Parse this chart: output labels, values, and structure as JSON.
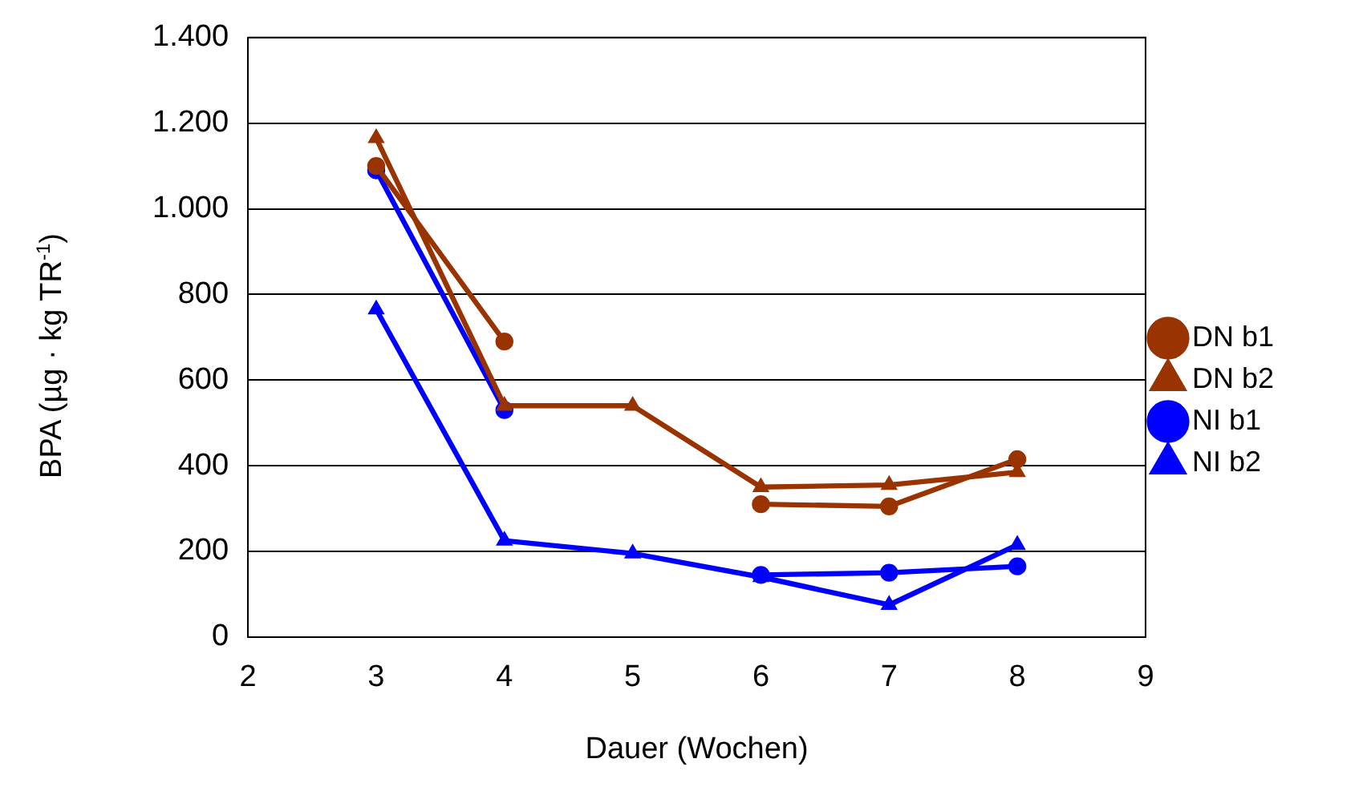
{
  "chart_data": {
    "type": "line",
    "xlabel": "Dauer (Wochen)",
    "ylabel": "BPA (µg · kg TR$^{-1}$)",
    "x": [
      3,
      4,
      5,
      6,
      7,
      8
    ],
    "series": [
      {
        "name": "DN b1",
        "color": "#993300",
        "marker": "circle",
        "values": [
          1100,
          690,
          null,
          310,
          305,
          415
        ]
      },
      {
        "name": "DN b2",
        "color": "#993300",
        "marker": "triangle",
        "values": [
          1165,
          540,
          540,
          350,
          355,
          385
        ]
      },
      {
        "name": "NI b1",
        "color": "#0000ff",
        "marker": "circle",
        "values": [
          1090,
          530,
          null,
          145,
          150,
          165
        ]
      },
      {
        "name": "NI b2",
        "color": "#0000ff",
        "marker": "triangle",
        "values": [
          765,
          225,
          195,
          140,
          75,
          215
        ]
      }
    ],
    "xlim": [
      2,
      9
    ],
    "xticks": [
      2,
      3,
      4,
      5,
      6,
      7,
      8,
      9
    ],
    "ylim": [
      0,
      1400
    ],
    "yticks": [
      0,
      200,
      400,
      600,
      800,
      {
        "value": 1000,
        "label": "1.000"
      },
      {
        "value": 1200,
        "label": "1.200"
      },
      {
        "value": 1400,
        "label": "1.400"
      }
    ],
    "grid": "y",
    "legend": "right"
  }
}
